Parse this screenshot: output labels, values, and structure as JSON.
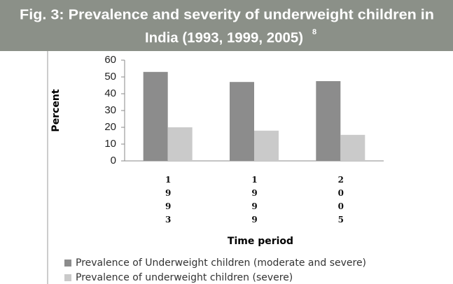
{
  "chart_data": {
    "type": "bar",
    "title_lines": [
      "Fig. 3: Prevalence and severity of underweight children in",
      "India (1993, 1999, 2005)"
    ],
    "title_note": "8",
    "x_label": "Time period",
    "y_label": "Percent",
    "categories": [
      "1993",
      "1999",
      "2005"
    ],
    "series": [
      {
        "name": "Prevalence of Underweight children (moderate and severe)",
        "color": "#8c8c8c",
        "values": [
          53,
          47,
          47.5
        ]
      },
      {
        "name": "Prevalence of underweight children (severe)",
        "color": "#cacaca",
        "values": [
          20,
          18,
          15.5
        ]
      }
    ],
    "ylim": [
      0,
      60
    ],
    "yticks": [
      0,
      10,
      20,
      30,
      40,
      50,
      60
    ]
  }
}
